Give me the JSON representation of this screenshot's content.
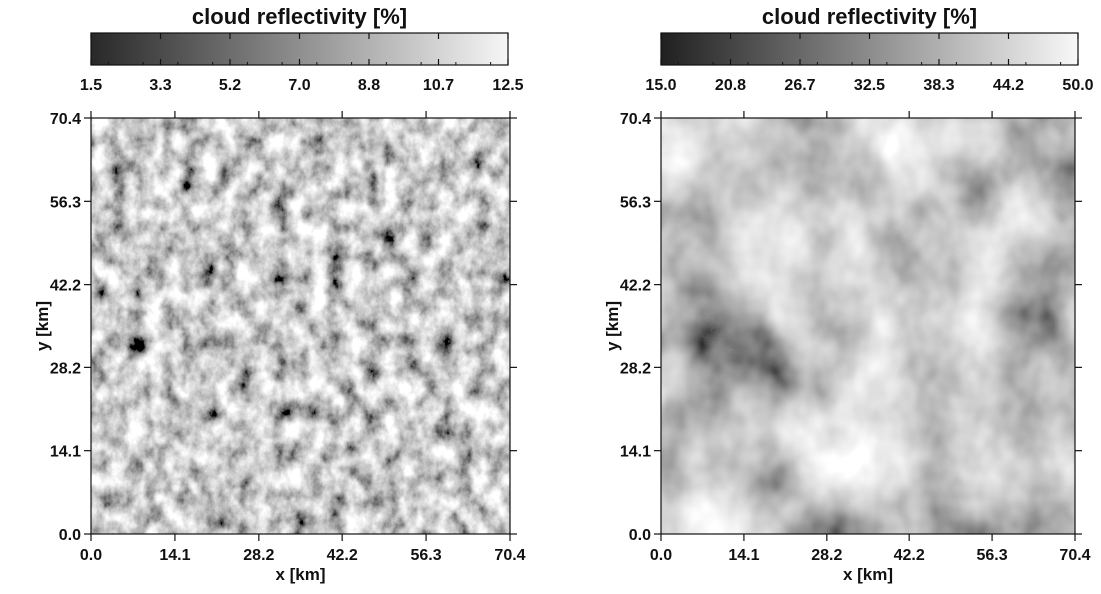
{
  "chart_data": [
    {
      "type": "heatmap",
      "colorbar": {
        "title": "cloud reflectivity [%]",
        "ticks": [
          "1.5",
          "3.3",
          "5.2",
          "7.0",
          "8.8",
          "10.7",
          "12.5"
        ],
        "range": [
          1.5,
          12.5
        ],
        "colormap": [
          "#282828",
          "#f6f6f6"
        ]
      },
      "xlabel": "x [km]",
      "ylabel": "y [km]",
      "xticks": [
        "0.0",
        "14.1",
        "28.2",
        "42.2",
        "56.3",
        "70.4"
      ],
      "yticks": [
        "0.0",
        "14.1",
        "28.2",
        "42.2",
        "56.3",
        "70.4"
      ],
      "xlim": [
        0,
        70.4
      ],
      "ylim": [
        0,
        70.4
      ],
      "texture": "fine-grained cloud field"
    },
    {
      "type": "heatmap",
      "colorbar": {
        "title": "cloud reflectivity [%]",
        "ticks": [
          "15.0",
          "20.8",
          "26.7",
          "32.5",
          "38.3",
          "44.2",
          "50.0"
        ],
        "range": [
          15.0,
          50.0
        ],
        "colormap": [
          "#202020",
          "#f8f8f8"
        ]
      },
      "xlabel": "x [km]",
      "ylabel": "y [km]",
      "xticks": [
        "0.0",
        "14.1",
        "28.2",
        "42.2",
        "56.3",
        "70.4"
      ],
      "yticks": [
        "0.0",
        "14.1",
        "28.2",
        "42.2",
        "56.3",
        "70.4"
      ],
      "xlim": [
        0,
        70.4
      ],
      "ylim": [
        0,
        70.4
      ],
      "texture": "smooth broad cloud field with bright spots"
    }
  ]
}
